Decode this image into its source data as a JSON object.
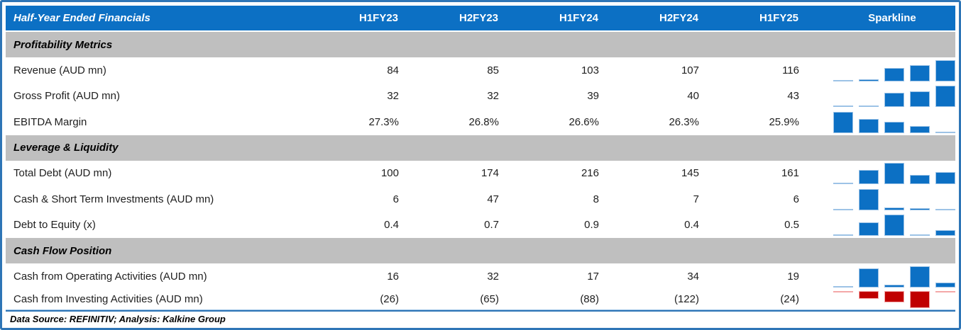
{
  "header": {
    "title": "Half-Year Ended Financials",
    "columns": [
      "H1FY23",
      "H2FY23",
      "H1FY24",
      "H2FY24",
      "H1FY25"
    ],
    "sparkline_label": "Sparkline"
  },
  "chart_data": {
    "type": "table",
    "categories": [
      "H1FY23",
      "H2FY23",
      "H1FY24",
      "H2FY24",
      "H1FY25"
    ],
    "sparkline_type": "column",
    "sections": [
      {
        "title": "Profitability Metrics",
        "rows": [
          {
            "label": "Revenue (AUD mn)",
            "display": [
              "84",
              "85",
              "103",
              "107",
              "116"
            ],
            "values": [
              84,
              85,
              103,
              107,
              116
            ]
          },
          {
            "label": "Gross Profit (AUD mn)",
            "display": [
              "32",
              "32",
              "39",
              "40",
              "43"
            ],
            "values": [
              32,
              32,
              39,
              40,
              43
            ]
          },
          {
            "label": "EBITDA Margin",
            "display": [
              "27.3%",
              "26.8%",
              "26.6%",
              "26.3%",
              "25.9%"
            ],
            "values": [
              27.3,
              26.8,
              26.6,
              26.3,
              25.9
            ]
          }
        ]
      },
      {
        "title": "Leverage & Liquidity",
        "rows": [
          {
            "label": "Total Debt (AUD mn)",
            "display": [
              "100",
              "174",
              "216",
              "145",
              "161"
            ],
            "values": [
              100,
              174,
              216,
              145,
              161
            ]
          },
          {
            "label": "Cash & Short Term Investments (AUD mn)",
            "display": [
              "6",
              "47",
              "8",
              "7",
              "6"
            ],
            "values": [
              6,
              47,
              8,
              7,
              6
            ]
          },
          {
            "label": "Debt to Equity (x)",
            "display": [
              "0.4",
              "0.7",
              "0.9",
              "0.4",
              "0.5"
            ],
            "values": [
              0.4,
              0.7,
              0.9,
              0.4,
              0.5
            ]
          }
        ]
      },
      {
        "title": "Cash Flow Position",
        "rows": [
          {
            "label": "Cash from Operating Activities (AUD mn)",
            "display": [
              "16",
              "32",
              "17",
              "34",
              "19"
            ],
            "values": [
              16,
              32,
              17,
              34,
              19
            ]
          },
          {
            "label": "Cash from Investing Activities (AUD mn)",
            "display": [
              "(26)",
              "(65)",
              "(88)",
              "(122)",
              "(24)"
            ],
            "values": [
              -26,
              -65,
              -88,
              -122,
              -24
            ]
          }
        ]
      }
    ]
  },
  "footer": {
    "text": "Data Source: REFINITIV; Analysis: Kalkine Group"
  },
  "colors": {
    "header_blue": "#0C70C4",
    "band_gray": "#BFBFBF",
    "frame_blue": "#2E75B6",
    "bar_blue": "#0C70C4",
    "bar_blue_light": "#9DC3E6",
    "bar_red": "#C00000",
    "bar_red_light": "#F4A8A8",
    "text_black": "#1F1F1F"
  }
}
